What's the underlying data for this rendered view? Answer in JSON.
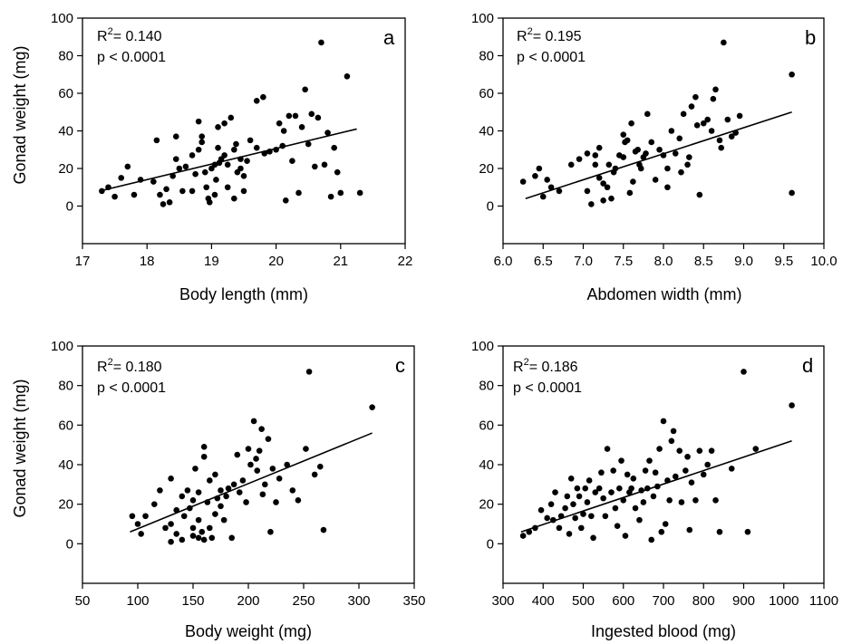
{
  "figure": {
    "shared_ylabel": "Gonad weight (mg)",
    "r2_prefix": "R",
    "r2_exp": "2",
    "p_text": "p < 0.0001"
  },
  "colors": {
    "points": "#000000",
    "axes": "#000000",
    "background": "#ffffff"
  },
  "chart_data": [
    {
      "type": "scatter",
      "panel": "a",
      "xlabel": "Body length (mm)",
      "ylabel": "Gonad weight (mg)",
      "xlim": [
        17,
        22
      ],
      "ylim": [
        -20,
        100
      ],
      "xticks": [
        "17",
        "18",
        "19",
        "20",
        "21",
        "22"
      ],
      "yticks": [
        "0",
        "20",
        "40",
        "60",
        "80",
        "100"
      ],
      "r2": "= 0.140",
      "p": "p < 0.0001",
      "fit": [
        [
          17.27,
          8
        ],
        [
          21.25,
          41
        ]
      ],
      "grid": false,
      "points": [
        [
          17.3,
          8
        ],
        [
          17.4,
          10
        ],
        [
          17.5,
          5
        ],
        [
          17.6,
          15
        ],
        [
          17.7,
          21
        ],
        [
          17.8,
          6
        ],
        [
          17.9,
          14
        ],
        [
          18.1,
          13
        ],
        [
          18.15,
          35
        ],
        [
          18.2,
          6
        ],
        [
          18.25,
          1
        ],
        [
          18.3,
          9
        ],
        [
          18.35,
          2
        ],
        [
          18.4,
          16
        ],
        [
          18.45,
          25
        ],
        [
          18.45,
          37
        ],
        [
          18.5,
          20
        ],
        [
          18.55,
          8
        ],
        [
          18.6,
          21
        ],
        [
          18.7,
          8
        ],
        [
          18.7,
          27
        ],
        [
          18.75,
          17
        ],
        [
          18.8,
          30
        ],
        [
          18.8,
          45
        ],
        [
          18.85,
          37
        ],
        [
          18.85,
          34
        ],
        [
          18.9,
          18
        ],
        [
          18.92,
          10
        ],
        [
          18.95,
          4
        ],
        [
          18.97,
          2
        ],
        [
          19.0,
          20
        ],
        [
          19.05,
          22
        ],
        [
          19.05,
          6
        ],
        [
          19.07,
          14
        ],
        [
          19.1,
          42
        ],
        [
          19.1,
          31
        ],
        [
          19.12,
          23
        ],
        [
          19.15,
          25
        ],
        [
          19.2,
          27
        ],
        [
          19.2,
          44
        ],
        [
          19.25,
          22
        ],
        [
          19.25,
          10
        ],
        [
          19.3,
          47
        ],
        [
          19.35,
          30
        ],
        [
          19.35,
          4
        ],
        [
          19.38,
          33
        ],
        [
          19.4,
          18
        ],
        [
          19.45,
          20
        ],
        [
          19.45,
          25
        ],
        [
          19.5,
          16
        ],
        [
          19.5,
          8
        ],
        [
          19.55,
          24
        ],
        [
          19.6,
          35
        ],
        [
          19.7,
          56
        ],
        [
          19.8,
          58
        ],
        [
          19.82,
          28
        ],
        [
          19.7,
          31
        ],
        [
          19.9,
          29
        ],
        [
          20.0,
          30
        ],
        [
          20.05,
          44
        ],
        [
          20.1,
          32
        ],
        [
          20.12,
          40
        ],
        [
          20.15,
          3
        ],
        [
          20.2,
          48
        ],
        [
          20.25,
          24
        ],
        [
          20.3,
          48
        ],
        [
          20.35,
          7
        ],
        [
          20.4,
          42
        ],
        [
          20.45,
          62
        ],
        [
          20.5,
          33
        ],
        [
          20.55,
          49
        ],
        [
          20.6,
          21
        ],
        [
          20.65,
          47
        ],
        [
          20.7,
          87
        ],
        [
          20.75,
          22
        ],
        [
          20.8,
          39
        ],
        [
          20.85,
          5
        ],
        [
          20.9,
          31
        ],
        [
          20.95,
          18
        ],
        [
          21.0,
          7
        ],
        [
          21.1,
          69
        ],
        [
          21.3,
          7
        ]
      ]
    },
    {
      "type": "scatter",
      "panel": "b",
      "xlabel": "Abdomen width (mm)",
      "ylabel": "",
      "xlim": [
        6.0,
        10.0
      ],
      "ylim": [
        -20,
        100
      ],
      "xticks": [
        "6.0",
        "6.5",
        "7.0",
        "7.5",
        "8.0",
        "8.5",
        "9.0",
        "9.5",
        "10.0"
      ],
      "yticks": [
        "0",
        "20",
        "40",
        "60",
        "80",
        "100"
      ],
      "r2": "= 0.195",
      "p": "p < 0.0001",
      "fit": [
        [
          6.28,
          4
        ],
        [
          9.6,
          50
        ]
      ],
      "grid": false,
      "points": [
        [
          6.25,
          13
        ],
        [
          6.4,
          16
        ],
        [
          6.45,
          20
        ],
        [
          6.5,
          5
        ],
        [
          6.55,
          14
        ],
        [
          6.6,
          10
        ],
        [
          6.7,
          8
        ],
        [
          6.85,
          22
        ],
        [
          6.95,
          25
        ],
        [
          7.05,
          28
        ],
        [
          7.05,
          8
        ],
        [
          7.1,
          1
        ],
        [
          7.15,
          22
        ],
        [
          7.15,
          27
        ],
        [
          7.2,
          31
        ],
        [
          7.2,
          15
        ],
        [
          7.25,
          3
        ],
        [
          7.25,
          12
        ],
        [
          7.3,
          10
        ],
        [
          7.32,
          22
        ],
        [
          7.35,
          4
        ],
        [
          7.38,
          18
        ],
        [
          7.4,
          20
        ],
        [
          7.45,
          27
        ],
        [
          7.5,
          26
        ],
        [
          7.5,
          38
        ],
        [
          7.52,
          34
        ],
        [
          7.55,
          35
        ],
        [
          7.58,
          7
        ],
        [
          7.6,
          44
        ],
        [
          7.62,
          13
        ],
        [
          7.65,
          29
        ],
        [
          7.68,
          30
        ],
        [
          7.7,
          22
        ],
        [
          7.72,
          20
        ],
        [
          7.75,
          26
        ],
        [
          7.78,
          28
        ],
        [
          7.8,
          49
        ],
        [
          7.85,
          34
        ],
        [
          7.9,
          14
        ],
        [
          7.95,
          30
        ],
        [
          8.0,
          27
        ],
        [
          8.05,
          20
        ],
        [
          8.05,
          10
        ],
        [
          8.1,
          40
        ],
        [
          8.15,
          28
        ],
        [
          8.2,
          36
        ],
        [
          8.22,
          18
        ],
        [
          8.25,
          49
        ],
        [
          8.3,
          22
        ],
        [
          8.32,
          26
        ],
        [
          8.35,
          53
        ],
        [
          8.4,
          58
        ],
        [
          8.42,
          43
        ],
        [
          8.45,
          6
        ],
        [
          8.5,
          44
        ],
        [
          8.55,
          46
        ],
        [
          8.6,
          40
        ],
        [
          8.62,
          57
        ],
        [
          8.65,
          62
        ],
        [
          8.7,
          35
        ],
        [
          8.72,
          31
        ],
        [
          8.75,
          87
        ],
        [
          8.8,
          46
        ],
        [
          8.85,
          37
        ],
        [
          8.9,
          39
        ],
        [
          8.95,
          48
        ],
        [
          9.6,
          70
        ],
        [
          9.6,
          7
        ]
      ]
    },
    {
      "type": "scatter",
      "panel": "c",
      "xlabel": "Body weight (mg)",
      "ylabel": "Gonad weight (mg)",
      "xlim": [
        50,
        350
      ],
      "ylim": [
        -20,
        100
      ],
      "xticks": [
        "50",
        "100",
        "150",
        "200",
        "250",
        "300",
        "350"
      ],
      "yticks": [
        "0",
        "20",
        "40",
        "60",
        "80",
        "100"
      ],
      "r2": "= 0.180",
      "p": "p < 0.0001",
      "fit": [
        [
          93,
          6
        ],
        [
          312,
          56
        ]
      ],
      "grid": false,
      "points": [
        [
          95,
          14
        ],
        [
          100,
          10
        ],
        [
          103,
          5
        ],
        [
          107,
          14
        ],
        [
          115,
          20
        ],
        [
          120,
          27
        ],
        [
          125,
          8
        ],
        [
          130,
          33
        ],
        [
          135,
          17
        ],
        [
          140,
          24
        ],
        [
          142,
          14
        ],
        [
          145,
          27
        ],
        [
          147,
          18
        ],
        [
          150,
          8
        ],
        [
          150,
          22
        ],
        [
          152,
          38
        ],
        [
          155,
          12
        ],
        [
          155,
          26
        ],
        [
          158,
          6
        ],
        [
          160,
          44
        ],
        [
          160,
          49
        ],
        [
          163,
          21
        ],
        [
          165,
          32
        ],
        [
          167,
          3
        ],
        [
          170,
          35
        ],
        [
          172,
          23
        ],
        [
          175,
          19
        ],
        [
          178,
          12
        ],
        [
          180,
          24
        ],
        [
          182,
          28
        ],
        [
          185,
          3
        ],
        [
          187,
          30
        ],
        [
          190,
          45
        ],
        [
          192,
          26
        ],
        [
          195,
          32
        ],
        [
          198,
          21
        ],
        [
          200,
          48
        ],
        [
          202,
          40
        ],
        [
          205,
          62
        ],
        [
          207,
          43
        ],
        [
          208,
          37
        ],
        [
          210,
          47
        ],
        [
          212,
          58
        ],
        [
          213,
          25
        ],
        [
          215,
          30
        ],
        [
          218,
          53
        ],
        [
          220,
          6
        ],
        [
          222,
          38
        ],
        [
          225,
          21
        ],
        [
          228,
          33
        ],
        [
          235,
          40
        ],
        [
          240,
          27
        ],
        [
          245,
          22
        ],
        [
          252,
          48
        ],
        [
          255,
          87
        ],
        [
          260,
          35
        ],
        [
          265,
          39
        ],
        [
          268,
          7
        ],
        [
          312,
          69
        ],
        [
          130,
          1
        ],
        [
          140,
          2
        ],
        [
          150,
          4
        ],
        [
          155,
          3
        ],
        [
          160,
          2
        ],
        [
          165,
          8
        ],
        [
          170,
          15
        ],
        [
          175,
          27
        ],
        [
          130,
          10
        ],
        [
          135,
          5
        ]
      ]
    },
    {
      "type": "scatter",
      "panel": "d",
      "xlabel": "Ingested blood (mg)",
      "ylabel": "",
      "xlim": [
        300,
        1100
      ],
      "ylim": [
        -20,
        100
      ],
      "xticks": [
        "300",
        "400",
        "500",
        "600",
        "700",
        "800",
        "900",
        "1000",
        "1100"
      ],
      "yticks": [
        "0",
        "20",
        "40",
        "60",
        "80",
        "100"
      ],
      "r2": "= 0.186",
      "p": "p < 0.0001",
      "fit": [
        [
          345,
          6
        ],
        [
          1020,
          52
        ]
      ],
      "grid": false,
      "points": [
        [
          350,
          4
        ],
        [
          365,
          6
        ],
        [
          380,
          8
        ],
        [
          395,
          17
        ],
        [
          410,
          13
        ],
        [
          420,
          20
        ],
        [
          425,
          12
        ],
        [
          430,
          26
        ],
        [
          440,
          8
        ],
        [
          445,
          14
        ],
        [
          455,
          18
        ],
        [
          460,
          24
        ],
        [
          465,
          5
        ],
        [
          470,
          33
        ],
        [
          475,
          20
        ],
        [
          480,
          13
        ],
        [
          485,
          28
        ],
        [
          490,
          24
        ],
        [
          495,
          8
        ],
        [
          500,
          15
        ],
        [
          505,
          28
        ],
        [
          510,
          21
        ],
        [
          515,
          32
        ],
        [
          520,
          14
        ],
        [
          525,
          3
        ],
        [
          530,
          26
        ],
        [
          540,
          28
        ],
        [
          545,
          36
        ],
        [
          550,
          23
        ],
        [
          555,
          14
        ],
        [
          560,
          48
        ],
        [
          570,
          26
        ],
        [
          575,
          37
        ],
        [
          580,
          18
        ],
        [
          585,
          9
        ],
        [
          590,
          28
        ],
        [
          595,
          42
        ],
        [
          600,
          22
        ],
        [
          605,
          4
        ],
        [
          610,
          35
        ],
        [
          615,
          26
        ],
        [
          620,
          28
        ],
        [
          625,
          33
        ],
        [
          630,
          18
        ],
        [
          640,
          12
        ],
        [
          645,
          27
        ],
        [
          650,
          21
        ],
        [
          655,
          37
        ],
        [
          660,
          28
        ],
        [
          665,
          42
        ],
        [
          670,
          2
        ],
        [
          675,
          24
        ],
        [
          680,
          36
        ],
        [
          685,
          29
        ],
        [
          690,
          48
        ],
        [
          695,
          6
        ],
        [
          700,
          62
        ],
        [
          705,
          10
        ],
        [
          710,
          32
        ],
        [
          715,
          22
        ],
        [
          720,
          52
        ],
        [
          725,
          57
        ],
        [
          730,
          34
        ],
        [
          740,
          47
        ],
        [
          745,
          21
        ],
        [
          755,
          37
        ],
        [
          760,
          44
        ],
        [
          765,
          7
        ],
        [
          770,
          31
        ],
        [
          780,
          22
        ],
        [
          790,
          47
        ],
        [
          800,
          35
        ],
        [
          810,
          40
        ],
        [
          820,
          47
        ],
        [
          830,
          22
        ],
        [
          840,
          6
        ],
        [
          870,
          38
        ],
        [
          900,
          87
        ],
        [
          910,
          6
        ],
        [
          930,
          48
        ],
        [
          1020,
          70
        ]
      ]
    }
  ]
}
